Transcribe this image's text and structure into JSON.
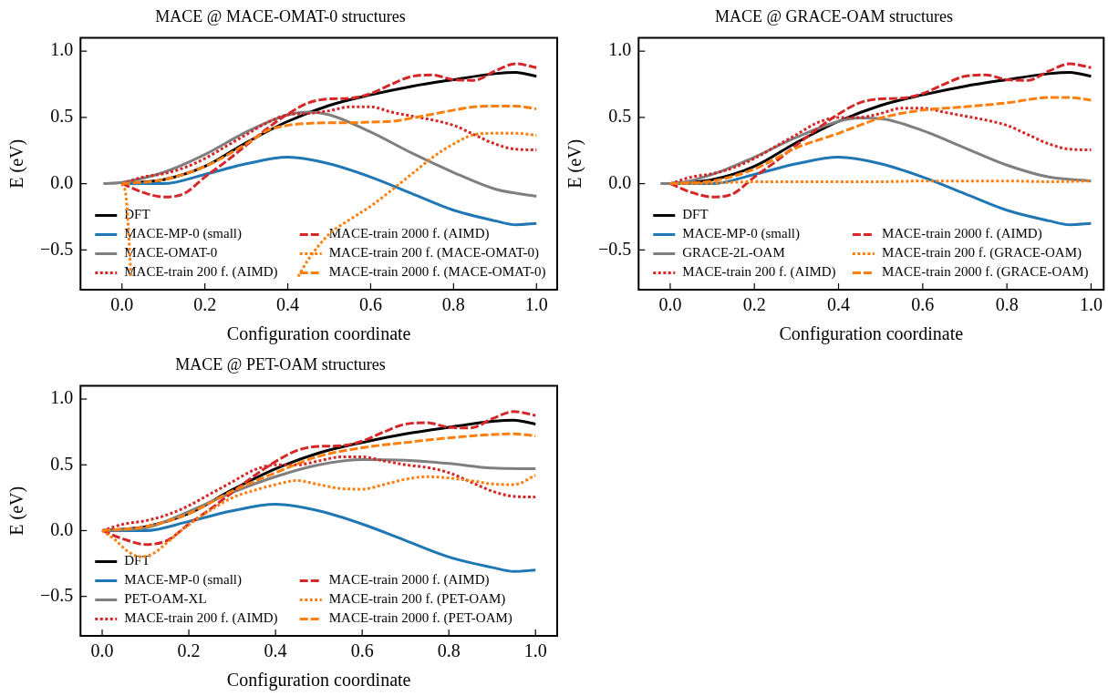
{
  "chart_data": [
    {
      "type": "line",
      "title": "MACE @ MACE-OMAT-0 structures",
      "xlabel": "Configuration coordinate",
      "ylabel": "E (eV)",
      "xlim": [
        -0.1,
        1.05
      ],
      "ylim": [
        -0.8,
        1.1
      ],
      "xticks": [
        {
          "value": 0,
          "label": "0.0"
        },
        {
          "value": 0.2,
          "label": "0.2"
        },
        {
          "value": 0.4,
          "label": "0.4"
        },
        {
          "value": 0.6,
          "label": "0.6"
        },
        {
          "value": 0.8,
          "label": "0.8"
        },
        {
          "value": 1,
          "label": "1.0"
        }
      ],
      "yticks": [
        {
          "value": -0.5,
          "label": "−0.5"
        },
        {
          "value": 0,
          "label": "0.0"
        },
        {
          "value": 0.5,
          "label": "0.5"
        },
        {
          "value": 1,
          "label": "1.0"
        }
      ],
      "legend": "bottom",
      "series": [
        {
          "name": "DFT",
          "color": "#000000",
          "line_style": "solid",
          "x": [
            0,
            0.1,
            0.2,
            0.3,
            0.4,
            0.5,
            0.6,
            0.7,
            0.8,
            0.9,
            0.95,
            1.0
          ],
          "values": [
            0,
            0.03,
            0.13,
            0.31,
            0.47,
            0.59,
            0.67,
            0.735,
            0.785,
            0.83,
            0.84,
            0.81
          ]
        },
        {
          "name": "MACE-MP-0 (small)",
          "color": "#1f77b4",
          "line_style": "solid",
          "x": [
            0,
            0.1,
            0.2,
            0.3,
            0.4,
            0.5,
            0.6,
            0.7,
            0.8,
            0.9,
            0.95,
            1.0
          ],
          "values": [
            0,
            0,
            0.07,
            0.15,
            0.2,
            0.15,
            0.05,
            -0.075,
            -0.2,
            -0.28,
            -0.31,
            -0.3
          ]
        },
        {
          "name": "MACE-OMAT-0",
          "color": "#7f7f7f",
          "line_style": "solid",
          "x": [
            -0.045,
            0,
            0.1,
            0.2,
            0.3,
            0.4,
            0.45,
            0.5,
            0.6,
            0.7,
            0.8,
            0.9,
            1.0
          ],
          "values": [
            0,
            0.01,
            0.085,
            0.22,
            0.39,
            0.52,
            0.54,
            0.52,
            0.39,
            0.23,
            0.085,
            -0.04,
            -0.095
          ]
        },
        {
          "name": "MACE-train 200 f. (AIMD)",
          "color": "#d62728",
          "line_style": "dotted",
          "x": [
            0,
            0.05,
            0.1,
            0.15,
            0.2,
            0.25,
            0.3,
            0.35,
            0.4,
            0.45,
            0.5,
            0.55,
            0.6,
            0.65,
            0.7,
            0.75,
            0.8,
            0.85,
            0.9,
            0.95,
            1.0
          ],
          "values": [
            0,
            0.05,
            0.075,
            0.12,
            0.19,
            0.28,
            0.37,
            0.46,
            0.52,
            0.53,
            0.55,
            0.58,
            0.58,
            0.54,
            0.51,
            0.48,
            0.44,
            0.37,
            0.3,
            0.26,
            0.255
          ]
        },
        {
          "name": "MACE-train 2000 f. (AIMD)",
          "color": "#d62728",
          "line_style": "dashed",
          "x": [
            0,
            0.05,
            0.1,
            0.15,
            0.2,
            0.25,
            0.3,
            0.35,
            0.4,
            0.45,
            0.5,
            0.55,
            0.6,
            0.65,
            0.7,
            0.75,
            0.8,
            0.85,
            0.9,
            0.95,
            1.0
          ],
          "values": [
            0,
            -0.065,
            -0.1,
            -0.075,
            0.05,
            0.165,
            0.29,
            0.415,
            0.525,
            0.61,
            0.64,
            0.645,
            0.68,
            0.75,
            0.81,
            0.82,
            0.785,
            0.78,
            0.85,
            0.905,
            0.875
          ]
        },
        {
          "name": "MACE-train 200 f. (MACE-OMAT-0)",
          "color": "#ff7f0e",
          "line_style": "dotted",
          "x": [
            0,
            0.01,
            0.022,
            0.2,
            0.425,
            0.45,
            0.5,
            0.55,
            0.6,
            0.65,
            0.7,
            0.75,
            0.8,
            0.85,
            0.9,
            0.95,
            1.0
          ],
          "values": [
            0,
            -0.1,
            -0.7,
            null,
            -0.7,
            -0.57,
            -0.38,
            -0.27,
            -0.17,
            -0.05,
            0.075,
            0.2,
            0.3,
            0.37,
            0.38,
            0.38,
            0.365
          ]
        },
        {
          "name": "MACE-train 2000 f. (MACE-OMAT-0)",
          "color": "#ff7f0e",
          "line_style": "dashed",
          "x": [
            0,
            0.1,
            0.2,
            0.3,
            0.35,
            0.4,
            0.45,
            0.5,
            0.55,
            0.6,
            0.65,
            0.7,
            0.75,
            0.8,
            0.85,
            0.9,
            0.95,
            1.0
          ],
          "values": [
            0,
            0.03,
            0.13,
            0.3,
            0.4,
            0.44,
            0.455,
            0.46,
            0.46,
            0.465,
            0.47,
            0.495,
            0.525,
            0.555,
            0.58,
            0.585,
            0.585,
            0.565
          ]
        }
      ]
    },
    {
      "type": "line",
      "title": "MACE @ GRACE-OAM structures",
      "xlabel": "Configuration coordinate",
      "ylabel": "E (eV)",
      "xlim": [
        -0.075,
        1.03
      ],
      "ylim": [
        -0.8,
        1.1
      ],
      "xticks": [
        {
          "value": 0,
          "label": "0.0"
        },
        {
          "value": 0.2,
          "label": "0.2"
        },
        {
          "value": 0.4,
          "label": "0.4"
        },
        {
          "value": 0.6,
          "label": "0.6"
        },
        {
          "value": 0.8,
          "label": "0.8"
        },
        {
          "value": 1,
          "label": "1.0"
        }
      ],
      "yticks": [
        {
          "value": -0.5,
          "label": "−0.5"
        },
        {
          "value": 0,
          "label": "0.0"
        },
        {
          "value": 0.5,
          "label": "0.5"
        },
        {
          "value": 1,
          "label": "1.0"
        }
      ],
      "legend": "bottom",
      "series": [
        {
          "name": "DFT",
          "color": "#000000",
          "line_style": "solid",
          "x": [
            0,
            0.1,
            0.2,
            0.3,
            0.4,
            0.5,
            0.6,
            0.7,
            0.8,
            0.9,
            0.95,
            1.0
          ],
          "values": [
            0,
            0.03,
            0.13,
            0.31,
            0.47,
            0.59,
            0.67,
            0.735,
            0.785,
            0.83,
            0.84,
            0.81
          ]
        },
        {
          "name": "MACE-MP-0 (small)",
          "color": "#1f77b4",
          "line_style": "solid",
          "x": [
            0,
            0.1,
            0.2,
            0.3,
            0.4,
            0.5,
            0.6,
            0.7,
            0.8,
            0.9,
            0.95,
            1.0
          ],
          "values": [
            0,
            0,
            0.07,
            0.15,
            0.2,
            0.15,
            0.05,
            -0.075,
            -0.2,
            -0.28,
            -0.31,
            -0.3
          ]
        },
        {
          "name": "GRACE-2L-OAM",
          "color": "#7f7f7f",
          "line_style": "solid",
          "x": [
            -0.023,
            0,
            0.1,
            0.2,
            0.3,
            0.4,
            0.45,
            0.5,
            0.6,
            0.7,
            0.8,
            0.9,
            1.0
          ],
          "values": [
            0,
            0,
            0.07,
            0.2,
            0.35,
            0.47,
            0.495,
            0.49,
            0.4,
            0.27,
            0.14,
            0.05,
            0.02
          ]
        },
        {
          "name": "MACE-train 200 f. (AIMD)",
          "color": "#d62728",
          "line_style": "dotted",
          "x": [
            0,
            0.05,
            0.1,
            0.15,
            0.2,
            0.25,
            0.3,
            0.35,
            0.4,
            0.45,
            0.5,
            0.55,
            0.6,
            0.65,
            0.7,
            0.75,
            0.8,
            0.85,
            0.9,
            0.95,
            1.0
          ],
          "values": [
            0,
            0.05,
            0.075,
            0.12,
            0.19,
            0.28,
            0.37,
            0.46,
            0.5,
            0.5,
            0.53,
            0.57,
            0.57,
            0.54,
            0.51,
            0.48,
            0.44,
            0.37,
            0.3,
            0.26,
            0.255
          ]
        },
        {
          "name": "MACE-train 2000 f. (AIMD)",
          "color": "#d62728",
          "line_style": "dashed",
          "x": [
            0,
            0.05,
            0.1,
            0.15,
            0.2,
            0.25,
            0.3,
            0.35,
            0.4,
            0.45,
            0.5,
            0.55,
            0.6,
            0.65,
            0.7,
            0.75,
            0.8,
            0.85,
            0.9,
            0.95,
            1.0
          ],
          "values": [
            0,
            -0.065,
            -0.1,
            -0.075,
            0.05,
            0.165,
            0.29,
            0.415,
            0.525,
            0.61,
            0.64,
            0.645,
            0.68,
            0.75,
            0.81,
            0.82,
            0.785,
            0.78,
            0.85,
            0.905,
            0.875
          ]
        },
        {
          "name": "MACE-train 200 f. (GRACE-OAM)",
          "color": "#ff7f0e",
          "line_style": "dotted",
          "x": [
            0,
            0.1,
            0.2,
            0.3,
            0.4,
            0.5,
            0.6,
            0.7,
            0.8,
            0.9,
            1.0
          ],
          "values": [
            0,
            0.005,
            0.015,
            0.015,
            0.015,
            0.015,
            0.02,
            0.02,
            0.02,
            0.015,
            0.02
          ]
        },
        {
          "name": "MACE-train 2000 f. (GRACE-OAM)",
          "color": "#ff7f0e",
          "line_style": "dashed",
          "x": [
            0,
            0.1,
            0.2,
            0.3,
            0.4,
            0.5,
            0.6,
            0.7,
            0.8,
            0.9,
            0.95,
            1.0
          ],
          "values": [
            0,
            0.02,
            0.11,
            0.27,
            0.38,
            0.495,
            0.555,
            0.58,
            0.61,
            0.65,
            0.65,
            0.63
          ]
        }
      ]
    },
    {
      "type": "line",
      "title": "MACE @ PET-OAM structures",
      "xlabel": "Configuration coordinate",
      "ylabel": "E (eV)",
      "xlim": [
        -0.05,
        1.05
      ],
      "ylim": [
        -0.8,
        1.1
      ],
      "xticks": [
        {
          "value": 0,
          "label": "0.0"
        },
        {
          "value": 0.2,
          "label": "0.2"
        },
        {
          "value": 0.4,
          "label": "0.4"
        },
        {
          "value": 0.6,
          "label": "0.6"
        },
        {
          "value": 0.8,
          "label": "0.8"
        },
        {
          "value": 1,
          "label": "1.0"
        }
      ],
      "yticks": [
        {
          "value": -0.5,
          "label": "−0.5"
        },
        {
          "value": 0,
          "label": "0.0"
        },
        {
          "value": 0.5,
          "label": "0.5"
        },
        {
          "value": 1,
          "label": "1.0"
        }
      ],
      "legend": "bottom",
      "series": [
        {
          "name": "DFT",
          "color": "#000000",
          "line_style": "solid",
          "x": [
            0,
            0.1,
            0.2,
            0.3,
            0.4,
            0.5,
            0.6,
            0.7,
            0.8,
            0.9,
            0.95,
            1.0
          ],
          "values": [
            0,
            0.03,
            0.13,
            0.31,
            0.47,
            0.59,
            0.67,
            0.735,
            0.785,
            0.83,
            0.84,
            0.81
          ]
        },
        {
          "name": "MACE-MP-0 (small)",
          "color": "#1f77b4",
          "line_style": "solid",
          "x": [
            0,
            0.1,
            0.2,
            0.3,
            0.4,
            0.5,
            0.6,
            0.7,
            0.8,
            0.9,
            0.95,
            1.0
          ],
          "values": [
            0,
            0,
            0.07,
            0.15,
            0.2,
            0.15,
            0.05,
            -0.075,
            -0.2,
            -0.28,
            -0.31,
            -0.3
          ]
        },
        {
          "name": "PET-OAM-XL",
          "color": "#7f7f7f",
          "line_style": "solid",
          "x": [
            0,
            0.1,
            0.2,
            0.3,
            0.4,
            0.5,
            0.6,
            0.7,
            0.8,
            0.9,
            1.0
          ],
          "values": [
            0,
            0.02,
            0.145,
            0.29,
            0.41,
            0.5,
            0.54,
            0.535,
            0.51,
            0.475,
            0.47
          ]
        },
        {
          "name": "MACE-train 200 f. (AIMD)",
          "color": "#d62728",
          "line_style": "dotted",
          "x": [
            0,
            0.05,
            0.1,
            0.15,
            0.2,
            0.25,
            0.3,
            0.35,
            0.4,
            0.45,
            0.5,
            0.55,
            0.6,
            0.65,
            0.7,
            0.75,
            0.8,
            0.85,
            0.9,
            0.95,
            1.0
          ],
          "values": [
            0,
            0.05,
            0.075,
            0.12,
            0.19,
            0.28,
            0.37,
            0.46,
            0.5,
            0.5,
            0.53,
            0.56,
            0.56,
            0.53,
            0.5,
            0.48,
            0.44,
            0.37,
            0.3,
            0.26,
            0.255
          ]
        },
        {
          "name": "MACE-train 2000 f. (AIMD)",
          "color": "#d62728",
          "line_style": "dashed",
          "x": [
            0,
            0.05,
            0.1,
            0.15,
            0.2,
            0.25,
            0.3,
            0.35,
            0.4,
            0.45,
            0.5,
            0.55,
            0.6,
            0.65,
            0.7,
            0.75,
            0.8,
            0.85,
            0.9,
            0.95,
            1.0
          ],
          "values": [
            0,
            -0.065,
            -0.105,
            -0.075,
            0.05,
            0.165,
            0.29,
            0.415,
            0.525,
            0.61,
            0.64,
            0.645,
            0.68,
            0.75,
            0.81,
            0.82,
            0.785,
            0.78,
            0.85,
            0.905,
            0.875
          ]
        },
        {
          "name": "MACE-train 200 f. (PET-OAM)",
          "color": "#ff7f0e",
          "line_style": "dotted",
          "x": [
            0,
            0.03,
            0.06,
            0.09,
            0.12,
            0.15,
            0.2,
            0.25,
            0.3,
            0.35,
            0.4,
            0.45,
            0.5,
            0.55,
            0.6,
            0.65,
            0.7,
            0.75,
            0.8,
            0.85,
            0.9,
            0.95,
            1.0
          ],
          "values": [
            0,
            -0.07,
            -0.16,
            -0.2,
            -0.17,
            -0.09,
            0.045,
            0.155,
            0.25,
            0.305,
            0.35,
            0.38,
            0.35,
            0.32,
            0.315,
            0.35,
            0.39,
            0.41,
            0.4,
            0.38,
            0.355,
            0.35,
            0.42
          ]
        },
        {
          "name": "MACE-train 2000 f. (PET-OAM)",
          "color": "#ff7f0e",
          "line_style": "dashed",
          "x": [
            0,
            0.1,
            0.2,
            0.3,
            0.4,
            0.5,
            0.6,
            0.7,
            0.8,
            0.9,
            0.95,
            1.0
          ],
          "values": [
            0,
            0.03,
            0.13,
            0.3,
            0.44,
            0.565,
            0.63,
            0.67,
            0.705,
            0.73,
            0.735,
            0.72
          ]
        }
      ]
    }
  ]
}
